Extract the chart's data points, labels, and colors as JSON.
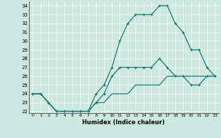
{
  "xlabel": "Humidex (Indice chaleur)",
  "bg_color": "#cce8e0",
  "line_color": "#1a7a6e",
  "x": [
    0,
    1,
    2,
    3,
    4,
    5,
    6,
    7,
    8,
    9,
    10,
    11,
    12,
    13,
    14,
    15,
    16,
    17,
    18,
    19,
    20,
    21,
    22,
    23
  ],
  "line_max": [
    24,
    24,
    23,
    22,
    22,
    22,
    22,
    22,
    24,
    25,
    27,
    30,
    32,
    33,
    33,
    33,
    34,
    34,
    32,
    31,
    29,
    29,
    27,
    26
  ],
  "line_mid": [
    24,
    24,
    23,
    22,
    22,
    22,
    22,
    22,
    23,
    24,
    26,
    27,
    27,
    27,
    27,
    27,
    28,
    27,
    26,
    26,
    25,
    25,
    26,
    26
  ],
  "line_min": [
    24,
    24,
    23,
    22,
    22,
    22,
    22,
    22,
    23,
    23,
    24,
    24,
    24,
    25,
    25,
    25,
    25,
    26,
    26,
    26,
    26,
    26,
    26,
    26
  ],
  "ylim": [
    21.8,
    34.5
  ],
  "xlim": [
    -0.5,
    23.5
  ],
  "yticks": [
    22,
    23,
    24,
    25,
    26,
    27,
    28,
    29,
    30,
    31,
    32,
    33,
    34
  ],
  "xticks": [
    0,
    1,
    2,
    3,
    4,
    5,
    6,
    7,
    8,
    9,
    10,
    11,
    12,
    13,
    14,
    15,
    16,
    17,
    18,
    19,
    20,
    21,
    22,
    23
  ]
}
